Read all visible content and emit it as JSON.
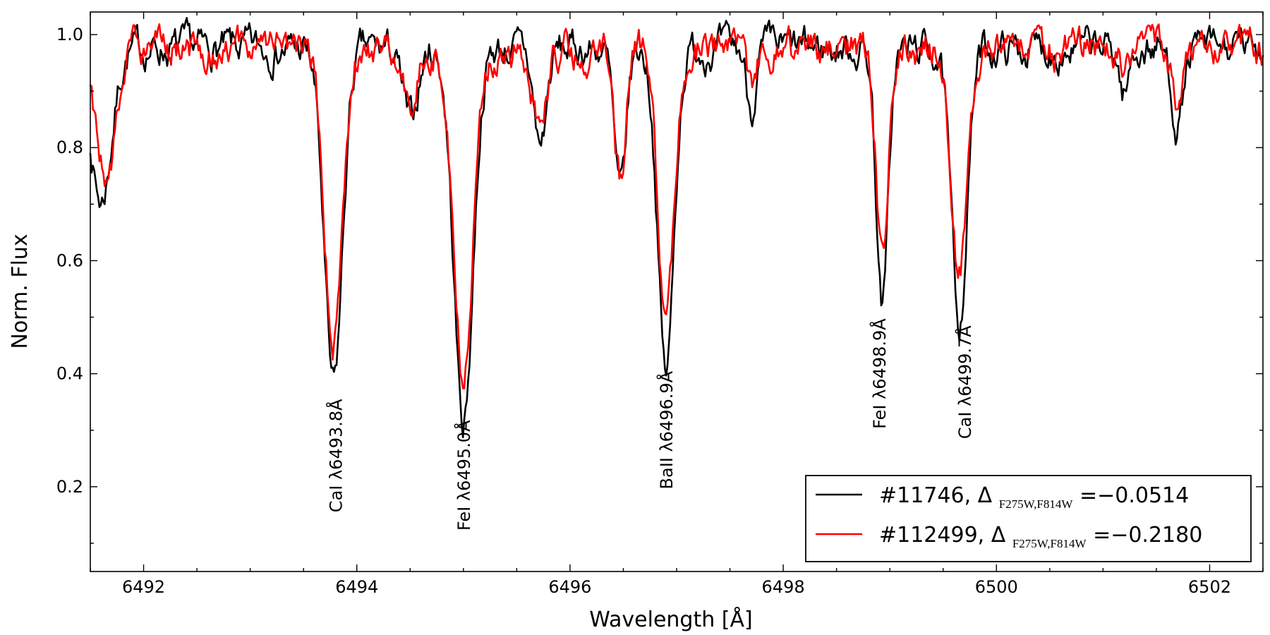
{
  "chart_data": {
    "type": "line",
    "xlabel": "Wavelength [Å]",
    "ylabel": "Norm. Flux",
    "xlim": [
      6491.5,
      6502.5
    ],
    "ylim": [
      0.05,
      1.04
    ],
    "xticks": [
      6492,
      6494,
      6496,
      6498,
      6500,
      6502
    ],
    "xtick_labels": [
      "6492",
      "6494",
      "6496",
      "6498",
      "6500",
      "6502"
    ],
    "yticks": [
      0.2,
      0.4,
      0.6,
      0.8,
      1.0
    ],
    "ytick_labels": [
      "0.2",
      "0.4",
      "0.6",
      "0.8",
      "1.0"
    ],
    "grid": false,
    "legend_position": "bottom-right",
    "continuum": 0.975,
    "series": [
      {
        "name": "#11746, ΔF275W,F814W=−0.0514",
        "legend": {
          "star": "#11746, Δ",
          "sub": "F275W,F814W",
          "value": "=−0.0514"
        },
        "color": "#000000",
        "features": [
          {
            "center": 6491.6,
            "depth": 0.27,
            "width": 0.1
          },
          {
            "center": 6493.78,
            "depth": 0.6,
            "width": 0.085
          },
          {
            "center": 6494.5,
            "depth": 0.13,
            "width": 0.07
          },
          {
            "center": 6495.0,
            "depth": 0.66,
            "width": 0.09
          },
          {
            "center": 6495.72,
            "depth": 0.17,
            "width": 0.06
          },
          {
            "center": 6496.47,
            "depth": 0.26,
            "width": 0.055
          },
          {
            "center": 6496.9,
            "depth": 0.575,
            "width": 0.075
          },
          {
            "center": 6497.7,
            "depth": 0.1,
            "width": 0.045
          },
          {
            "center": 6498.93,
            "depth": 0.455,
            "width": 0.055
          },
          {
            "center": 6499.65,
            "depth": 0.48,
            "width": 0.075
          },
          {
            "center": 6501.2,
            "depth": 0.08,
            "width": 0.045
          },
          {
            "center": 6501.7,
            "depth": 0.13,
            "width": 0.055
          }
        ]
      },
      {
        "name": "#112499, ΔF275W,F814W=−0.2180",
        "legend": {
          "star": "#112499, Δ",
          "sub": "F275W,F814W",
          "value": "=−0.2180"
        },
        "color": "#ff0000",
        "features": [
          {
            "center": 6491.65,
            "depth": 0.23,
            "width": 0.1
          },
          {
            "center": 6493.78,
            "depth": 0.52,
            "width": 0.085
          },
          {
            "center": 6494.5,
            "depth": 0.08,
            "width": 0.07
          },
          {
            "center": 6495.0,
            "depth": 0.58,
            "width": 0.09
          },
          {
            "center": 6495.72,
            "depth": 0.16,
            "width": 0.06
          },
          {
            "center": 6496.47,
            "depth": 0.225,
            "width": 0.055
          },
          {
            "center": 6496.9,
            "depth": 0.495,
            "width": 0.075
          },
          {
            "center": 6497.7,
            "depth": 0.06,
            "width": 0.045
          },
          {
            "center": 6498.93,
            "depth": 0.39,
            "width": 0.055
          },
          {
            "center": 6499.65,
            "depth": 0.4,
            "width": 0.075
          },
          {
            "center": 6501.2,
            "depth": 0.02,
            "width": 0.045
          },
          {
            "center": 6501.7,
            "depth": 0.1,
            "width": 0.055
          }
        ]
      }
    ],
    "line_annotations": [
      {
        "label": "CaI λ6493.8Å",
        "x": 6493.8,
        "y": 0.255
      },
      {
        "label": "FeI λ6495.0Å",
        "x": 6495.0,
        "y": 0.22
      },
      {
        "label": "BaII λ6496.9Å",
        "x": 6496.9,
        "y": 0.3
      },
      {
        "label": "FeI λ6498.9Å",
        "x": 6498.9,
        "y": 0.4
      },
      {
        "label": "CaI λ6499.7Å",
        "x": 6499.7,
        "y": 0.385
      }
    ]
  }
}
